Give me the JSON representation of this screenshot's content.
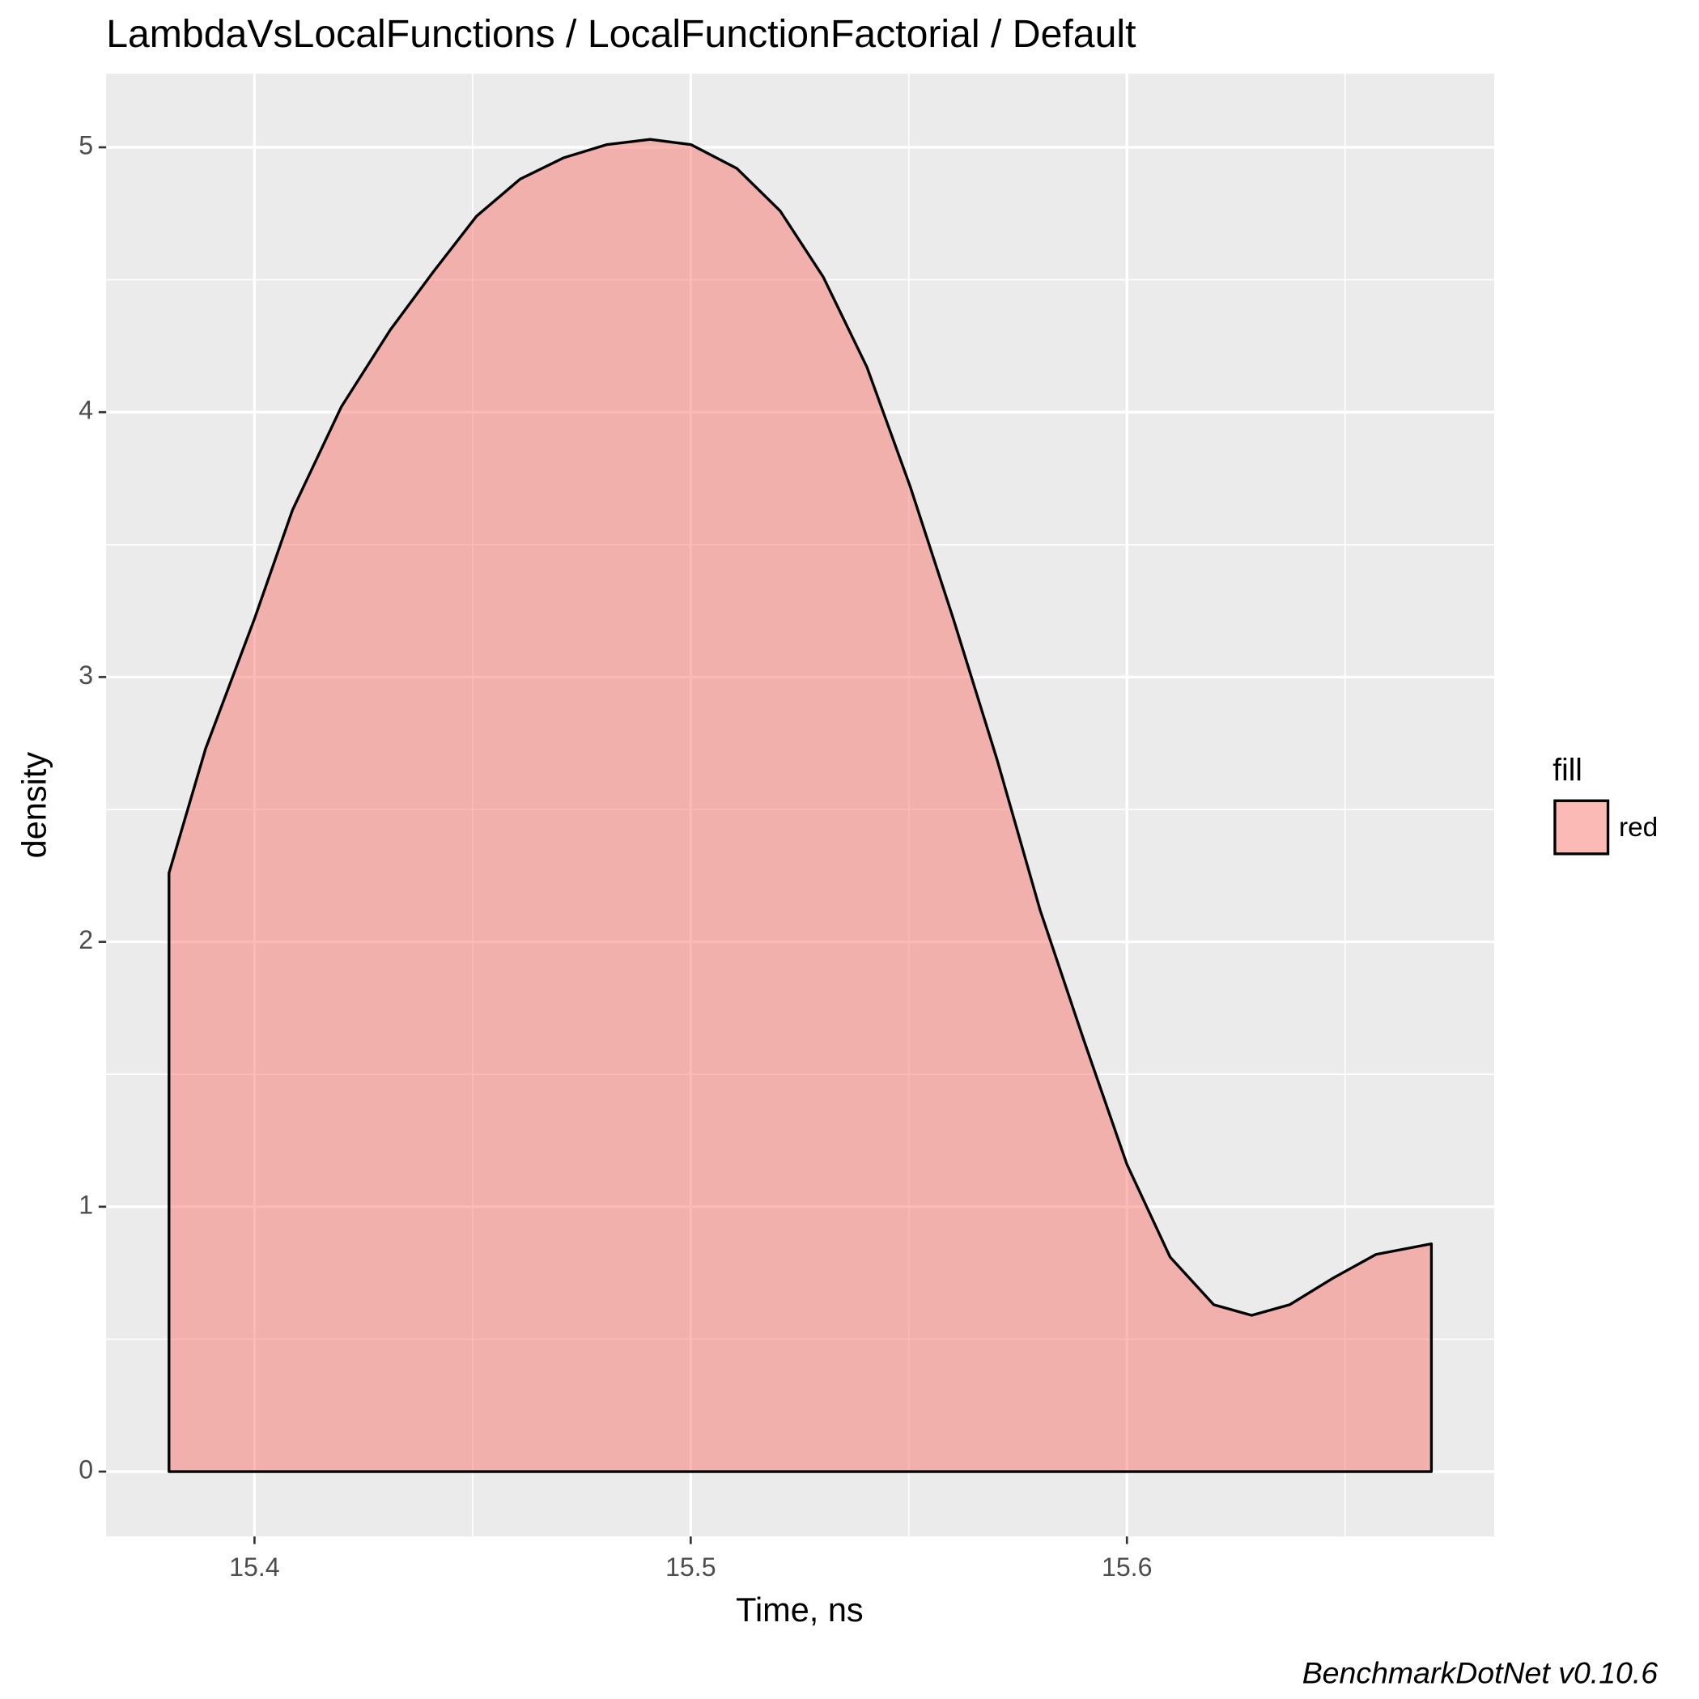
{
  "chart_data": {
    "type": "area",
    "title": "LambdaVsLocalFunctions / LocalFunctionFactorial / Default",
    "x_label": "Time, ns",
    "y_label": "density",
    "caption": "BenchmarkDotNet v0.10.6",
    "legend_title": "fill",
    "x": [
      15.3804,
      15.3888,
      15.4,
      15.4087,
      15.4199,
      15.4311,
      15.441,
      15.4509,
      15.4609,
      15.4708,
      15.4807,
      15.4907,
      15.5001,
      15.5106,
      15.5205,
      15.5304,
      15.5404,
      15.5503,
      15.5602,
      15.5702,
      15.5801,
      15.5901,
      15.6,
      15.6099,
      15.6199,
      15.6286,
      15.6373,
      15.6472,
      15.6571,
      15.6698
    ],
    "series": [
      {
        "name": "red",
        "color": "#F8766D",
        "alpha": 0.5,
        "values": [
          2.26,
          2.73,
          3.22,
          3.63,
          4.02,
          4.31,
          4.53,
          4.74,
          4.88,
          4.96,
          5.01,
          5.03,
          5.01,
          4.92,
          4.76,
          4.51,
          4.17,
          3.72,
          3.22,
          2.69,
          2.12,
          1.63,
          1.16,
          0.81,
          0.63,
          0.59,
          0.63,
          0.73,
          0.82,
          0.86
        ]
      }
    ],
    "xlim": [
      15.366,
      15.6842
    ],
    "ylim": [
      -0.245,
      5.278
    ],
    "xticks": [
      15.4,
      15.5,
      15.6
    ],
    "yticks": [
      0,
      1,
      2,
      3,
      4,
      5
    ],
    "x_minor_grid": [
      15.45,
      15.55,
      15.65
    ],
    "y_minor_grid": [
      0.5,
      1.5,
      2.5,
      3.5,
      4.5
    ],
    "grid": true,
    "legend": "right"
  }
}
